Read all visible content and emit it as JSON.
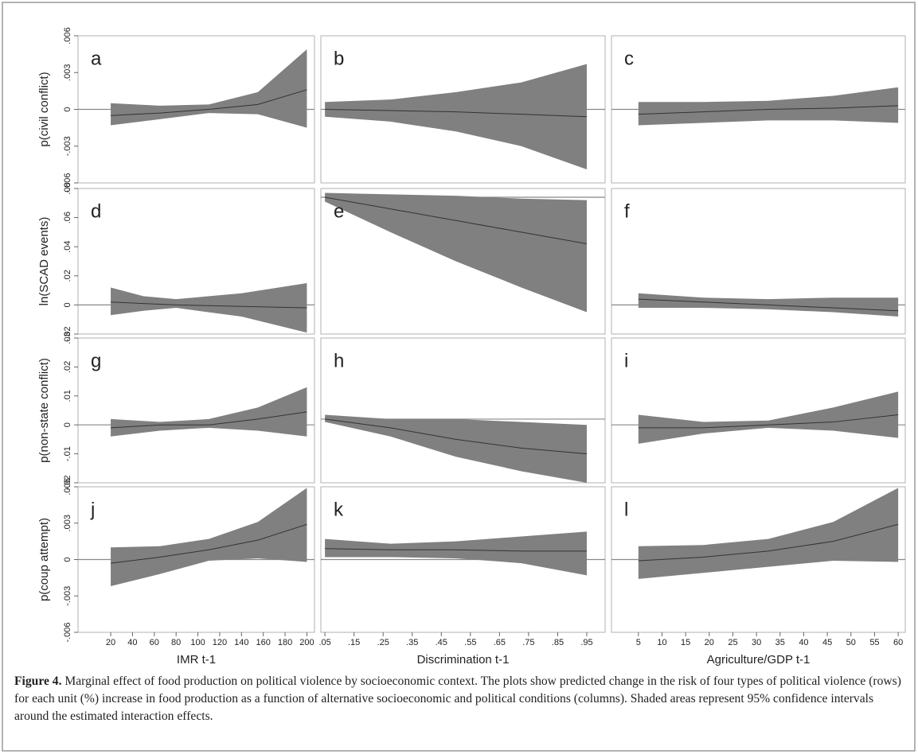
{
  "chart_data": [
    {
      "type": "line",
      "label": "a",
      "y_label": "p(civil conflict)",
      "color": "#808080",
      "line_color": "#333333",
      "xlim": [
        -10,
        207
      ],
      "ylim": [
        -0.006,
        0.006
      ],
      "yticks": [
        {
          "value": -0.006,
          "label": "-.006"
        },
        {
          "value": -0.003,
          "label": "-.003"
        },
        0,
        {
          "value": 0.003,
          "label": ".003"
        },
        {
          "value": 0.006,
          "label": ".006"
        }
      ],
      "x": [
        20,
        65,
        110,
        155,
        200
      ],
      "values": [
        -0.0005,
        -0.0003,
        0,
        0.0004,
        0.0016
      ],
      "lower": [
        -0.0013,
        -0.0008,
        -0.0003,
        -0.0004,
        -0.0015
      ],
      "upper": [
        0.0005,
        0.0003,
        0.0004,
        0.0014,
        0.0049
      ],
      "ref": 0
    },
    {
      "type": "line",
      "label": "b",
      "color": "#808080",
      "line_color": "#333333",
      "xlim": [
        0.036,
        1.013
      ],
      "ylim": [
        -0.006,
        0.006
      ],
      "x": [
        0.05,
        0.275,
        0.5,
        0.725,
        0.95
      ],
      "values": [
        0,
        -0.0001,
        -0.0002,
        -0.0004,
        -0.0006
      ],
      "lower": [
        -0.0006,
        -0.001,
        -0.0018,
        -0.003,
        -0.0049
      ],
      "upper": [
        0.0006,
        0.0008,
        0.0014,
        0.0022,
        0.0037
      ],
      "ref": 0
    },
    {
      "type": "line",
      "label": "c",
      "color": "#808080",
      "line_color": "#333333",
      "xlim": [
        -0.7,
        61.5
      ],
      "ylim": [
        -0.006,
        0.006
      ],
      "x": [
        5,
        18.75,
        32.5,
        46.25,
        60
      ],
      "values": [
        -0.0004,
        -0.0002,
        0,
        0.0001,
        0.0003
      ],
      "lower": [
        -0.0013,
        -0.0011,
        -0.0009,
        -0.0009,
        -0.0011
      ],
      "upper": [
        0.0006,
        0.0006,
        0.0007,
        0.0011,
        0.0018
      ],
      "ref": 0
    },
    {
      "type": "line",
      "label": "d",
      "y_label": "ln(SCAD events)",
      "color": "#808080",
      "line_color": "#333333",
      "xlim": [
        -10,
        207
      ],
      "ylim": [
        -0.02,
        0.08
      ],
      "yticks": [
        {
          "value": -0.02,
          "label": "-.02"
        },
        0,
        {
          "value": 0.02,
          "label": ".02"
        },
        {
          "value": 0.04,
          "label": ".04"
        },
        {
          "value": 0.06,
          "label": ".06"
        },
        {
          "value": 0.08,
          "label": ".08"
        }
      ],
      "x": [
        20,
        50,
        80,
        140,
        200
      ],
      "values": [
        0.002,
        0.001,
        0,
        -0.001,
        -0.002
      ],
      "lower": [
        -0.007,
        -0.004,
        -0.002,
        -0.008,
        -0.019
      ],
      "upper": [
        0.012,
        0.006,
        0.004,
        0.008,
        0.015
      ],
      "ref": 0
    },
    {
      "type": "line",
      "label": "e",
      "color": "#808080",
      "line_color": "#333333",
      "xlim": [
        0.036,
        1.013
      ],
      "ylim": [
        -0.02,
        0.08
      ],
      "x": [
        0.05,
        0.275,
        0.5,
        0.725,
        0.95
      ],
      "values": [
        0.074,
        0.066,
        0.058,
        0.05,
        0.042
      ],
      "lower": [
        0.071,
        0.05,
        0.03,
        0.012,
        -0.005
      ],
      "upper": [
        0.077,
        0.076,
        0.075,
        0.073,
        0.072
      ],
      "ref": 0.074
    },
    {
      "type": "line",
      "label": "f",
      "color": "#808080",
      "line_color": "#333333",
      "xlim": [
        -0.7,
        61.5
      ],
      "ylim": [
        -0.02,
        0.08
      ],
      "x": [
        5,
        18.75,
        32.5,
        46.25,
        60
      ],
      "values": [
        0.004,
        0.002,
        0,
        -0.002,
        -0.004
      ],
      "lower": [
        -0.002,
        -0.002,
        -0.003,
        -0.005,
        -0.008
      ],
      "upper": [
        0.008,
        0.005,
        0.004,
        0.005,
        0.005
      ],
      "ref": 0
    },
    {
      "type": "line",
      "label": "g",
      "y_label": "p(non-state conflict)",
      "color": "#808080",
      "line_color": "#333333",
      "xlim": [
        -10,
        207
      ],
      "ylim": [
        -0.02,
        0.03
      ],
      "yticks": [
        {
          "value": -0.02,
          "label": "-.02"
        },
        {
          "value": -0.01,
          "label": "-.01"
        },
        0,
        {
          "value": 0.01,
          "label": ".01"
        },
        {
          "value": 0.02,
          "label": ".02"
        },
        {
          "value": 0.03,
          "label": ".03"
        }
      ],
      "x": [
        20,
        65,
        110,
        155,
        200
      ],
      "values": [
        -0.001,
        0,
        0,
        0.002,
        0.0045
      ],
      "lower": [
        -0.004,
        -0.002,
        -0.001,
        -0.002,
        -0.004
      ],
      "upper": [
        0.002,
        0.001,
        0.002,
        0.006,
        0.013
      ],
      "ref": 0
    },
    {
      "type": "line",
      "label": "h",
      "color": "#808080",
      "line_color": "#333333",
      "xlim": [
        0.036,
        1.013
      ],
      "ylim": [
        -0.02,
        0.03
      ],
      "x": [
        0.05,
        0.275,
        0.5,
        0.725,
        0.95
      ],
      "values": [
        0.002,
        -0.001,
        -0.005,
        -0.008,
        -0.01
      ],
      "lower": [
        0.001,
        -0.004,
        -0.011,
        -0.016,
        -0.02
      ],
      "upper": [
        0.0035,
        0.002,
        0.002,
        0.001,
        0
      ],
      "ref": 0.002
    },
    {
      "type": "line",
      "label": "i",
      "color": "#808080",
      "line_color": "#333333",
      "xlim": [
        -0.7,
        61.5
      ],
      "ylim": [
        -0.02,
        0.03
      ],
      "x": [
        5,
        18.75,
        32.5,
        46.25,
        60
      ],
      "values": [
        -0.001,
        -0.001,
        0,
        0.001,
        0.0035
      ],
      "lower": [
        -0.0065,
        -0.003,
        -0.001,
        -0.002,
        -0.0045
      ],
      "upper": [
        0.0035,
        0.001,
        0.0015,
        0.006,
        0.0115
      ],
      "ref": 0
    },
    {
      "type": "line",
      "label": "j",
      "y_label": "p(coup attempt)",
      "x_label": "IMR t-1",
      "color": "#808080",
      "line_color": "#333333",
      "xlim": [
        -10,
        207
      ],
      "ylim": [
        -0.006,
        0.006
      ],
      "yticks": [
        {
          "value": -0.006,
          "label": "-.006"
        },
        {
          "value": -0.003,
          "label": "-.003"
        },
        0,
        {
          "value": 0.003,
          "label": ".003"
        },
        {
          "value": 0.006,
          "label": ".006"
        }
      ],
      "xticks": [
        20,
        40,
        60,
        80,
        100,
        120,
        140,
        160,
        180,
        200
      ],
      "x": [
        20,
        65,
        110,
        155,
        200
      ],
      "values": [
        -0.0003,
        0.0002,
        0.0008,
        0.0016,
        0.0029
      ],
      "lower": [
        -0.0022,
        -0.0012,
        -0.0001,
        0.0001,
        -0.0002
      ],
      "upper": [
        0.001,
        0.0011,
        0.0017,
        0.0031,
        0.0059
      ],
      "ref": 0
    },
    {
      "type": "line",
      "label": "k",
      "x_label": "Discrimination t-1",
      "color": "#808080",
      "line_color": "#333333",
      "xlim": [
        0.036,
        1.013
      ],
      "ylim": [
        -0.006,
        0.006
      ],
      "xticks": [
        {
          "value": 0.05,
          "label": ".05"
        },
        {
          "value": 0.15,
          "label": ".15"
        },
        {
          "value": 0.25,
          "label": ".25"
        },
        {
          "value": 0.35,
          "label": ".35"
        },
        {
          "value": 0.45,
          "label": ".45"
        },
        {
          "value": 0.55,
          "label": ".55"
        },
        {
          "value": 0.65,
          "label": ".65"
        },
        {
          "value": 0.75,
          "label": ".75"
        },
        {
          "value": 0.85,
          "label": ".85"
        },
        {
          "value": 0.95,
          "label": ".95"
        }
      ],
      "x": [
        0.05,
        0.275,
        0.5,
        0.725,
        0.95
      ],
      "values": [
        0.0009,
        0.0008,
        0.0008,
        0.0007,
        0.0007
      ],
      "lower": [
        0.0002,
        0.0002,
        0.0001,
        -0.0003,
        -0.0013
      ],
      "upper": [
        0.0017,
        0.0013,
        0.0015,
        0.0019,
        0.0023
      ],
      "ref": 0
    },
    {
      "type": "line",
      "label": "l",
      "x_label": "Agriculture/GDP t-1",
      "color": "#808080",
      "line_color": "#333333",
      "xlim": [
        -0.7,
        61.5
      ],
      "ylim": [
        -0.006,
        0.006
      ],
      "xticks": [
        5,
        10,
        15,
        20,
        25,
        30,
        35,
        40,
        45,
        50,
        55,
        60
      ],
      "x": [
        5,
        18.75,
        32.5,
        46.25,
        60
      ],
      "values": [
        -0.0001,
        0.0002,
        0.0007,
        0.0015,
        0.0029
      ],
      "lower": [
        -0.0016,
        -0.0011,
        -0.0006,
        -0.0001,
        -0.0002
      ],
      "upper": [
        0.0011,
        0.0012,
        0.0017,
        0.0031,
        0.0059
      ],
      "ref": 0
    }
  ],
  "caption": {
    "label": "Figure 4.",
    "text": "Marginal effect of food production on political violence by socioeconomic context. The plots show predicted change in the risk of four types of political violence (rows) for each unit (%) increase in food production as a function of alternative socioeconomic and political conditions (columns). Shaded areas represent 95% confidence intervals around the estimated interaction effects."
  }
}
